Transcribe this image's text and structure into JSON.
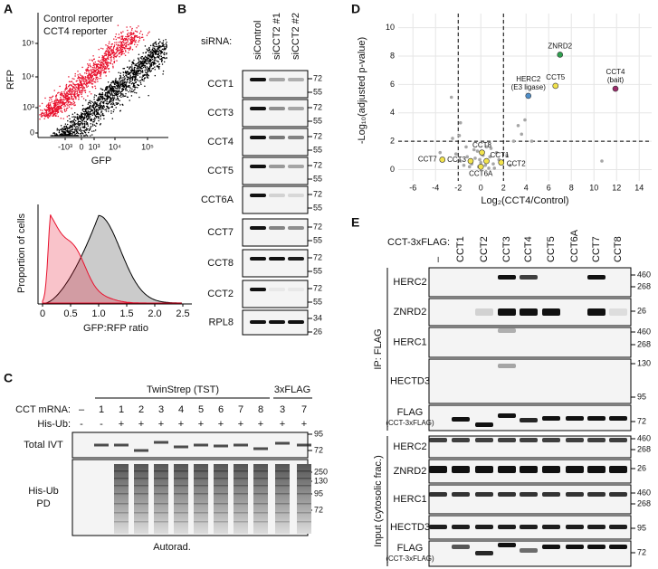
{
  "panels": {
    "A": {
      "label": "A",
      "scatter": {
        "legend": [
          {
            "name": "Control reporter",
            "color": "#000000"
          },
          {
            "name": "CCT4 reporter",
            "color": "#e8112d"
          }
        ],
        "y_label": "RFP",
        "x_label": "GFP",
        "yticks": [
          "10⁵",
          "10⁴",
          "10³",
          "0"
        ],
        "xticks": [
          "-10³",
          "0",
          "10³",
          "10⁴",
          "10⁵"
        ]
      },
      "histogram": {
        "y_label": "Proportion of cells",
        "x_label": "GFP:RFP ratio",
        "xticks": [
          "0",
          "0.5",
          "1.0",
          "1.5",
          "2.0",
          "2.5"
        ]
      }
    },
    "B": {
      "label": "B",
      "row_label": "siRNA:",
      "columns": [
        "siControl",
        "siCCT2 #1",
        "siCCT2 #2"
      ],
      "rows": [
        {
          "name": "CCT1",
          "markers": [
            "72",
            "55"
          ]
        },
        {
          "name": "CCT3",
          "markers": [
            "72",
            "55"
          ]
        },
        {
          "name": "CCT4",
          "markers": [
            "72",
            "55"
          ]
        },
        {
          "name": "CCT5",
          "markers": [
            "72",
            "55"
          ]
        },
        {
          "name": "CCT6A",
          "markers": [
            "72",
            "55"
          ]
        },
        {
          "name": "CCT7",
          "markers": [
            "72",
            "55"
          ]
        },
        {
          "name": "CCT8",
          "markers": [
            "72",
            "55"
          ]
        },
        {
          "name": "CCT2",
          "markers": [
            "72",
            "55"
          ]
        },
        {
          "name": "RPL8",
          "markers": [
            "34",
            "26"
          ]
        }
      ]
    },
    "C": {
      "label": "C",
      "groups": [
        "TwinStrep (TST)",
        "3xFLAG"
      ],
      "rows": [
        {
          "name": "CCT mRNA:",
          "values": [
            "–",
            "1",
            "1",
            "2",
            "3",
            "4",
            "5",
            "6",
            "7",
            "8",
            "3",
            "7"
          ]
        },
        {
          "name": "His-Ub:",
          "values": [
            "-",
            "-",
            "+",
            "+",
            "+",
            "+",
            "+",
            "+",
            "+",
            "+",
            "+",
            "+"
          ]
        }
      ],
      "blots": [
        {
          "name_lines": [
            "Total IVT"
          ],
          "markers": [
            "95",
            "72"
          ]
        },
        {
          "name_lines": [
            "His-Ub",
            "PD"
          ],
          "markers": [
            "250",
            "130",
            "95",
            "72"
          ]
        }
      ],
      "footer": "Autorad."
    },
    "D": {
      "label": "D",
      "chart_data": {
        "type": "scatter",
        "x_label": "Log₂(CCT4/Control)",
        "y_label": "-Log₁₀(adjusted p-value)",
        "xlim": [
          -7.3,
          15.1
        ],
        "ylim": [
          -0.8,
          11
        ],
        "xticks": [
          -6,
          -4,
          -2,
          0,
          2,
          4,
          6,
          8,
          10,
          12,
          14
        ],
        "yticks": [
          0,
          2,
          4,
          6,
          8,
          10
        ],
        "grid": true,
        "vlines": [
          -2,
          2
        ],
        "hlines": [
          2
        ],
        "series": [
          {
            "color": "#a6a6a6",
            "x": [
              -2.6,
              -1.8,
              -1.9,
              -2.5,
              3.3,
              3.9,
              3.6,
              2.9,
              4.5,
              10.7,
              -0.3,
              0.5,
              -1.2,
              -0.8,
              -0.5,
              0.0,
              0.2,
              0.4,
              0.8,
              1.1,
              1.4,
              -1.5,
              -2.2,
              -1.0,
              0.7,
              -0.2,
              1.6,
              -1.8,
              2.3,
              -0.6,
              0.9,
              -3.6,
              2.6,
              -1.3,
              1.2,
              -0.1
            ],
            "y": [
              5.1,
              3.3,
              2.4,
              2.2,
              3.1,
              3.5,
              2.5,
              2.0,
              2.0,
              0.6,
              1.3,
              1.6,
              0.9,
              0.4,
              0.8,
              0.5,
              1.0,
              0.3,
              0.9,
              0.4,
              1.2,
              0.3,
              1.1,
              0.2,
              0.1,
              0.2,
              0.7,
              0.6,
              1.0,
              1.4,
              1.5,
              1.2,
              0.3,
              1.6,
              0.1,
              0.7
            ]
          },
          {
            "name": "CCT7",
            "color": "#f2e34c",
            "x": [
              -3.4
            ],
            "y": [
              0.7
            ]
          },
          {
            "name": "CCT3",
            "color": "#f2e34c",
            "x": [
              -0.9
            ],
            "y": [
              0.6
            ]
          },
          {
            "name": "CCT8",
            "color": "#f2e34c",
            "x": [
              0.1
            ],
            "y": [
              1.2
            ]
          },
          {
            "name": "CCT6A",
            "color": "#f2e34c",
            "x": [
              0.0
            ],
            "y": [
              0.2
            ]
          },
          {
            "name": "CCT1",
            "color": "#f2e34c",
            "x": [
              0.5
            ],
            "y": [
              0.6
            ]
          },
          {
            "name": "CCT2",
            "color": "#f2e34c",
            "x": [
              1.8
            ],
            "y": [
              0.5
            ]
          },
          {
            "name": "HERC2",
            "note": "(E3 ligase)",
            "color": "#4e8ec9",
            "x": [
              4.2
            ],
            "y": [
              5.2
            ]
          },
          {
            "name": "CCT5",
            "color": "#f2e34c",
            "x": [
              6.6
            ],
            "y": [
              5.9
            ]
          },
          {
            "name": "ZNRD2",
            "color": "#2fa04f",
            "x": [
              7.0
            ],
            "y": [
              8.1
            ]
          },
          {
            "name": "CCT4",
            "note": "(bait)",
            "color": "#9c2a6b",
            "x": [
              11.9
            ],
            "y": [
              5.7
            ]
          }
        ]
      }
    },
    "E": {
      "label": "E",
      "row_label": "CCT-3xFLAG:",
      "columns": [
        "–",
        "CCT1",
        "CCT2",
        "CCT3",
        "CCT4",
        "CCT5",
        "CCT6A",
        "CCT7",
        "CCT8"
      ],
      "groups": [
        {
          "name": "IP: FLAG",
          "rows": [
            {
              "name_lines": [
                "HERC2"
              ],
              "markers": [
                "460",
                "268"
              ]
            },
            {
              "name_lines": [
                "ZNRD2"
              ],
              "markers": [
                "26"
              ]
            },
            {
              "name_lines": [
                "HERC1"
              ],
              "markers": [
                "460",
                "268"
              ]
            },
            {
              "name_lines": [
                "HECTD3"
              ],
              "markers": [
                "130",
                "95"
              ]
            },
            {
              "name_lines": [
                "FLAG",
                "(CCT-3xFLAG)"
              ],
              "markers": [
                "72"
              ]
            }
          ]
        },
        {
          "name": "Input (cytosolic frac.)",
          "rows": [
            {
              "name_lines": [
                "HERC2"
              ],
              "markers": [
                "460",
                "268"
              ]
            },
            {
              "name_lines": [
                "ZNRD2"
              ],
              "markers": [
                "26"
              ]
            },
            {
              "name_lines": [
                "HERC1"
              ],
              "markers": [
                "460",
                "268"
              ]
            },
            {
              "name_lines": [
                "HECTD3"
              ],
              "markers": [
                "95"
              ]
            },
            {
              "name_lines": [
                "FLAG",
                "(CCT-3xFLAG)"
              ],
              "markers": [
                "72"
              ]
            }
          ]
        }
      ]
    }
  }
}
